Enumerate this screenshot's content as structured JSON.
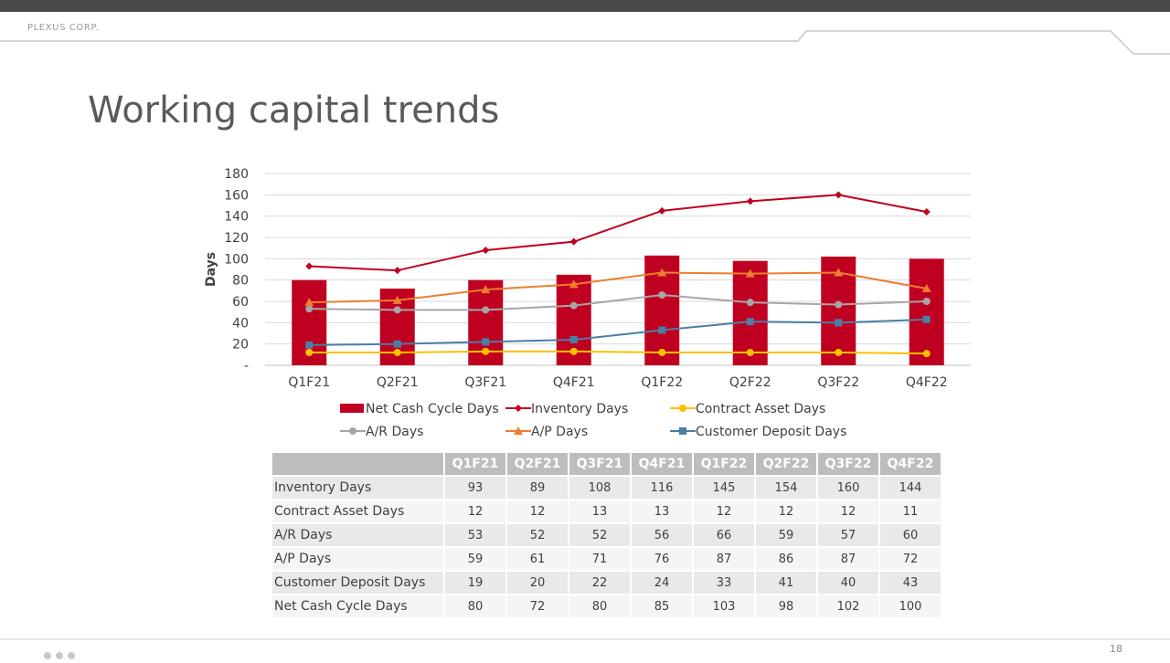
{
  "header": {
    "company": "PLEXUS CORP."
  },
  "slide": {
    "title": "Working capital trends",
    "page_number": "18"
  },
  "chart_data": {
    "type": "bar+line",
    "categories": [
      "Q1F21",
      "Q2F21",
      "Q3F21",
      "Q4F21",
      "Q1F22",
      "Q2F22",
      "Q3F22",
      "Q4F22"
    ],
    "ylabel": "Days",
    "ylim": [
      0,
      180
    ],
    "yticks": [
      "-",
      "20",
      "40",
      "60",
      "80",
      "100",
      "120",
      "140",
      "160",
      "180"
    ],
    "grid": true,
    "legend_position": "bottom",
    "bars": {
      "name": "Net Cash Cycle Days",
      "color": "#c00020",
      "values": [
        80,
        72,
        80,
        85,
        103,
        98,
        102,
        100
      ]
    },
    "series": [
      {
        "name": "Inventory Days",
        "color": "#c00020",
        "marker": "diamond",
        "values": [
          93,
          89,
          108,
          116,
          145,
          154,
          160,
          144
        ]
      },
      {
        "name": "Contract Asset Days",
        "color": "#ffc000",
        "marker": "circle",
        "values": [
          12,
          12,
          13,
          13,
          12,
          12,
          12,
          11
        ]
      },
      {
        "name": "A/R Days",
        "color": "#a6a6a6",
        "marker": "circle",
        "values": [
          53,
          52,
          52,
          56,
          66,
          59,
          57,
          60
        ]
      },
      {
        "name": "A/P Days",
        "color": "#ed7d31",
        "marker": "triangle",
        "values": [
          59,
          61,
          71,
          76,
          87,
          86,
          87,
          72
        ]
      },
      {
        "name": "Customer Deposit Days",
        "color": "#4a7ea5",
        "marker": "square",
        "values": [
          19,
          20,
          22,
          24,
          33,
          41,
          40,
          43
        ]
      }
    ]
  },
  "table": {
    "headers": [
      "Q1F21",
      "Q2F21",
      "Q3F21",
      "Q4F21",
      "Q1F22",
      "Q2F22",
      "Q3F22",
      "Q4F22"
    ],
    "rows": [
      {
        "label": "Inventory Days",
        "values": [
          "93",
          "89",
          "108",
          "116",
          "145",
          "154",
          "160",
          "144"
        ]
      },
      {
        "label": "Contract Asset Days",
        "values": [
          "12",
          "12",
          "13",
          "13",
          "12",
          "12",
          "12",
          "11"
        ]
      },
      {
        "label": "A/R Days",
        "values": [
          "53",
          "52",
          "52",
          "56",
          "66",
          "59",
          "57",
          "60"
        ]
      },
      {
        "label": "A/P Days",
        "values": [
          "59",
          "61",
          "71",
          "76",
          "87",
          "86",
          "87",
          "72"
        ]
      },
      {
        "label": "Customer Deposit Days",
        "values": [
          "19",
          "20",
          "22",
          "24",
          "33",
          "41",
          "40",
          "43"
        ]
      },
      {
        "label": "Net Cash Cycle Days",
        "values": [
          "80",
          "72",
          "80",
          "85",
          "103",
          "98",
          "102",
          "100"
        ]
      }
    ]
  }
}
